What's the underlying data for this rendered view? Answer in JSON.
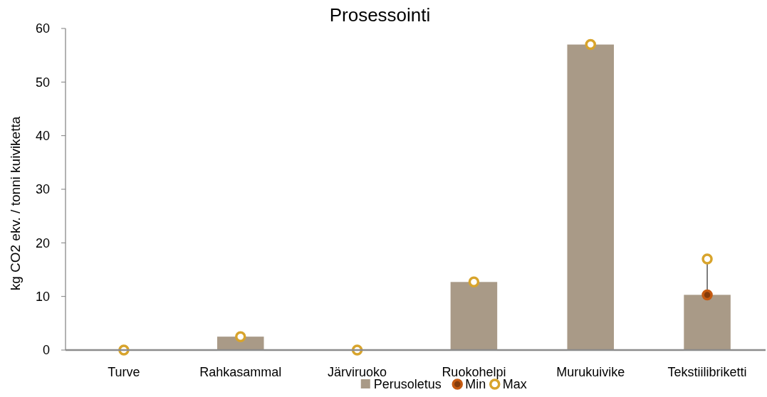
{
  "chart_data": {
    "type": "bar",
    "title": "Prosessointi",
    "ylabel": "kg CO2 ekv. / tonni kuiviketta",
    "categories": [
      "Turve",
      "Rahkasammal",
      "Järviruoko",
      "Ruokohelpi",
      "Murukuivike",
      "Tekstiilibriketti"
    ],
    "series": [
      {
        "name": "Perusoletus",
        "color": "#a99a87",
        "values": [
          0,
          2.5,
          0,
          12.7,
          57,
          10.3
        ]
      },
      {
        "name": "Min",
        "type": "scatter",
        "color": "#c55a11",
        "marker": "circle",
        "x": [
          "Turve",
          "Rahkasammal",
          "Järviruoko",
          "Ruokohelpi",
          "Murukuivike",
          "Tekstiilibriketti"
        ],
        "values": [
          null,
          null,
          null,
          null,
          null,
          10.3
        ]
      },
      {
        "name": "Max",
        "type": "scatter",
        "color": "#d8a42c",
        "marker": "circle",
        "x": [
          "Turve",
          "Rahkasammal",
          "Järviruoko",
          "Ruokohelpi",
          "Murukuivike",
          "Tekstiilibriketti"
        ],
        "values": [
          0,
          2.5,
          0,
          12.7,
          57,
          17
        ]
      }
    ],
    "ylim": [
      0,
      60
    ],
    "yticks": [
      0,
      10,
      20,
      30,
      40,
      50,
      60
    ],
    "grid": false,
    "legend": "bottom"
  }
}
